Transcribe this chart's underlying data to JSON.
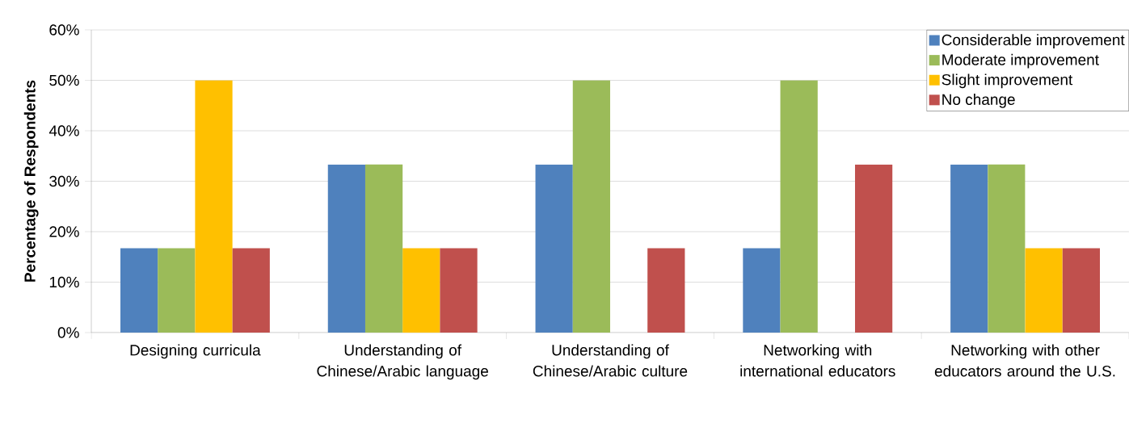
{
  "chart_data": {
    "type": "bar",
    "ylabel": "Percentage of Respondents",
    "categories": [
      "Designing curricula",
      "Understanding of Chinese/Arabic language",
      "Understanding of Chinese/Arabic culture",
      "Networking with international educators",
      "Networking with other educators around the U.S."
    ],
    "series": [
      {
        "name": "Considerable improvement",
        "color": "#4f81bd",
        "values": [
          16.7,
          33.3,
          33.3,
          16.7,
          33.3
        ]
      },
      {
        "name": "Moderate improvement",
        "color": "#9bbb59",
        "values": [
          16.7,
          33.3,
          50,
          50,
          33.3
        ]
      },
      {
        "name": "Slight improvement",
        "color": "#ffc000",
        "values": [
          50,
          16.7,
          null,
          null,
          16.7
        ]
      },
      {
        "name": "No change",
        "color": "#c0504d",
        "values": [
          16.7,
          16.7,
          16.7,
          33.3,
          16.7
        ]
      }
    ],
    "ylim": [
      0,
      60
    ],
    "yticks": [
      {
        "value": 0,
        "label": "0%"
      },
      {
        "value": 10,
        "label": "10%"
      },
      {
        "value": 20,
        "label": "20%"
      },
      {
        "value": 30,
        "label": "30%"
      },
      {
        "value": 40,
        "label": "40%"
      },
      {
        "value": 50,
        "label": "50%"
      },
      {
        "value": 60,
        "label": "60%"
      }
    ],
    "grid": "y",
    "legend": "top right"
  }
}
